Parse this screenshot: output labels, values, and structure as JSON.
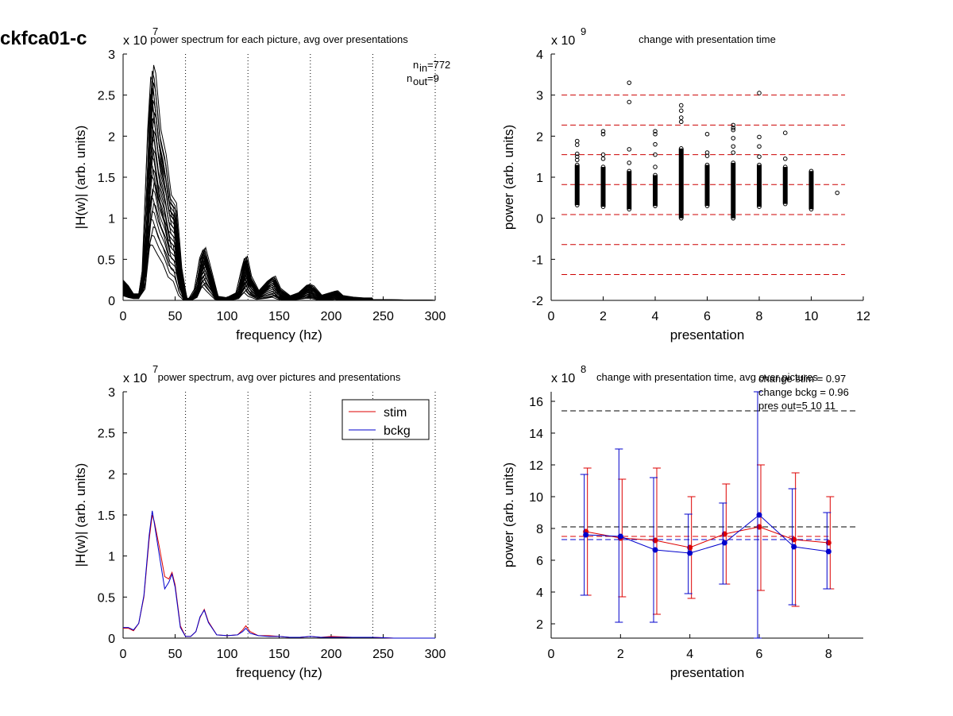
{
  "figure_title": "ckfca01-c",
  "chart_data": [
    {
      "type": "line",
      "title": "power spectrum for each picture, avg over presentations",
      "exponent_label": "x 10",
      "exponent": "7",
      "xlabel": "frequency (hz)",
      "ylabel": "|H(w)| (arb. units)",
      "xlim": [
        0,
        300
      ],
      "ylim": [
        0,
        3
      ],
      "xticks": [
        0,
        50,
        100,
        150,
        200,
        250,
        300
      ],
      "yticks": [
        0,
        0.5,
        1,
        1.5,
        2,
        2.5,
        3
      ],
      "vlines": [
        60,
        120,
        180,
        240,
        300
      ],
      "annotation": {
        "n_in_label": "n",
        "n_in_sub": "in",
        "n_in_value": "=772",
        "n_out_label": "n",
        "n_out_sub": "out",
        "n_out_value": "=9"
      },
      "envelope": {
        "x": [
          0,
          5,
          10,
          15,
          20,
          25,
          28,
          30,
          35,
          40,
          45,
          50,
          55,
          60,
          65,
          70,
          75,
          78,
          82,
          90,
          100,
          110,
          115,
          118,
          122,
          130,
          140,
          145,
          150,
          160,
          170,
          178,
          182,
          190,
          200,
          205,
          210,
          220,
          230,
          238,
          240,
          300
        ],
        "upper": [
          0.25,
          0.18,
          0.08,
          0.08,
          0.4,
          2.2,
          2.9,
          2.8,
          2.1,
          1.8,
          1.3,
          1.2,
          0.4,
          0.02,
          0.03,
          0.15,
          0.55,
          0.65,
          0.45,
          0.05,
          0.03,
          0.1,
          0.4,
          0.55,
          0.3,
          0.1,
          0.25,
          0.3,
          0.15,
          0.05,
          0.1,
          0.2,
          0.18,
          0.06,
          0.1,
          0.12,
          0.06,
          0.04,
          0.03,
          0.03,
          0.01,
          0.0
        ],
        "lower": [
          0.05,
          0.03,
          0.02,
          0.02,
          0.1,
          0.5,
          0.6,
          0.6,
          0.5,
          0.4,
          0.25,
          0.2,
          0.05,
          0.0,
          0.0,
          0.02,
          0.12,
          0.15,
          0.1,
          0.01,
          0.0,
          0.01,
          0.05,
          0.08,
          0.04,
          0.01,
          0.02,
          0.03,
          0.01,
          0.0,
          0.01,
          0.02,
          0.02,
          0.0,
          0.0,
          0.01,
          0.0,
          0.0,
          0.0,
          0.0,
          0.0,
          0.0
        ]
      }
    },
    {
      "type": "scatter",
      "title": "change with presentation time",
      "exponent_label": "x 10",
      "exponent": "9",
      "xlabel": "presentation",
      "ylabel": "power (arb. units)",
      "xlim": [
        0,
        12
      ],
      "ylim": [
        -2,
        4
      ],
      "xticks": [
        0,
        2,
        4,
        6,
        8,
        10,
        12
      ],
      "yticks": [
        -2,
        -1,
        0,
        1,
        2,
        3,
        4
      ],
      "hlines": [
        3.0,
        2.27,
        1.55,
        0.82,
        0.09,
        -0.64,
        -1.37
      ],
      "columns": [
        {
          "x": 1,
          "min": 0.32,
          "max": 1.3,
          "outliers": [
            1.42,
            1.5,
            1.57,
            1.79,
            1.88
          ]
        },
        {
          "x": 2,
          "min": 0.28,
          "max": 1.25,
          "outliers": [
            1.45,
            1.55,
            2.05,
            2.12
          ]
        },
        {
          "x": 3,
          "min": 0.22,
          "max": 1.15,
          "outliers": [
            1.35,
            1.68,
            2.83,
            3.3
          ]
        },
        {
          "x": 4,
          "min": 0.3,
          "max": 1.05,
          "outliers": [
            1.25,
            1.55,
            1.8,
            2.05,
            2.12
          ]
        },
        {
          "x": 5,
          "min": 0.0,
          "max": 1.7,
          "outliers": [
            2.35,
            2.45,
            2.62,
            2.75
          ]
        },
        {
          "x": 6,
          "min": 0.3,
          "max": 1.3,
          "outliers": [
            1.52,
            1.6,
            2.05
          ]
        },
        {
          "x": 7,
          "min": 0.0,
          "max": 1.35,
          "outliers": [
            1.6,
            1.75,
            1.95,
            2.15,
            2.2,
            2.27
          ]
        },
        {
          "x": 8,
          "min": 0.28,
          "max": 1.3,
          "outliers": [
            1.5,
            1.75,
            1.98,
            3.05
          ]
        },
        {
          "x": 9,
          "min": 0.35,
          "max": 1.25,
          "outliers": [
            1.45,
            2.08
          ]
        },
        {
          "x": 10,
          "min": 0.22,
          "max": 1.15,
          "outliers": []
        },
        {
          "x": 11,
          "min": 0.62,
          "max": 0.62,
          "outliers": []
        }
      ]
    },
    {
      "type": "line",
      "title": "power spectrum, avg over pictures and presentations",
      "exponent_label": "x 10",
      "exponent": "7",
      "xlabel": "frequency (hz)",
      "ylabel": "|H(w)| (arb. units)",
      "xlim": [
        0,
        300
      ],
      "ylim": [
        0,
        3
      ],
      "xticks": [
        0,
        50,
        100,
        150,
        200,
        250,
        300
      ],
      "yticks": [
        0,
        0.5,
        1,
        1.5,
        2,
        2.5,
        3
      ],
      "vlines": [
        60,
        120,
        180,
        240,
        300
      ],
      "legend": {
        "position": "top-right"
      },
      "series": [
        {
          "name": "stim",
          "color": "#dd0000",
          "x": [
            0,
            5,
            10,
            15,
            20,
            25,
            28,
            30,
            35,
            40,
            44,
            47,
            50,
            55,
            60,
            65,
            70,
            74,
            78,
            82,
            90,
            100,
            110,
            115,
            118,
            122,
            130,
            140,
            150,
            160,
            170,
            180,
            190,
            200,
            220,
            240,
            260,
            300
          ],
          "y": [
            0.12,
            0.12,
            0.09,
            0.18,
            0.5,
            1.2,
            1.5,
            1.42,
            1.1,
            0.75,
            0.72,
            0.8,
            0.65,
            0.15,
            0.02,
            0.02,
            0.08,
            0.25,
            0.35,
            0.2,
            0.04,
            0.03,
            0.04,
            0.1,
            0.15,
            0.08,
            0.03,
            0.03,
            0.02,
            0.01,
            0.01,
            0.02,
            0.01,
            0.02,
            0.01,
            0.01,
            0.0,
            0.0
          ]
        },
        {
          "name": "bckg",
          "color": "#0000cc",
          "x": [
            0,
            5,
            10,
            15,
            20,
            25,
            28,
            30,
            35,
            40,
            44,
            47,
            50,
            55,
            60,
            65,
            70,
            74,
            78,
            82,
            90,
            100,
            110,
            115,
            118,
            122,
            130,
            140,
            150,
            160,
            170,
            180,
            190,
            200,
            220,
            240,
            260,
            300
          ],
          "y": [
            0.13,
            0.13,
            0.1,
            0.18,
            0.52,
            1.25,
            1.55,
            1.4,
            1.0,
            0.6,
            0.68,
            0.78,
            0.62,
            0.13,
            0.02,
            0.02,
            0.08,
            0.26,
            0.34,
            0.19,
            0.04,
            0.03,
            0.04,
            0.08,
            0.12,
            0.06,
            0.03,
            0.02,
            0.02,
            0.01,
            0.01,
            0.02,
            0.01,
            0.01,
            0.01,
            0.01,
            0.0,
            0.0
          ]
        }
      ]
    },
    {
      "type": "line",
      "title": "change with presentation time, avg over pictures",
      "exponent_label": "x 10",
      "exponent": "8",
      "xlabel": "presentation",
      "ylabel": "power (arb. units)",
      "xlim": [
        0,
        9
      ],
      "ylim": [
        1.1,
        16.6
      ],
      "xticks": [
        0,
        2,
        4,
        6,
        8
      ],
      "yticks": [
        2,
        4,
        6,
        8,
        10,
        12,
        14,
        16
      ],
      "annotations": [
        "change stim = 0.97",
        "change bckg = 0.96",
        "pres out=5 10 11"
      ],
      "hlines": [
        {
          "y": 15.4,
          "color": "#000000"
        },
        {
          "y": 8.1,
          "color": "#000000"
        },
        {
          "y": 7.5,
          "color": "#dd0000",
          "x_end": 8
        },
        {
          "y": 7.3,
          "color": "#0000cc",
          "x_end": 8
        }
      ],
      "series": [
        {
          "name": "stim",
          "color": "#dd0000",
          "x": [
            1,
            2,
            3,
            4,
            5,
            6,
            7,
            8
          ],
          "y": [
            7.8,
            7.4,
            7.25,
            6.8,
            7.65,
            8.1,
            7.3,
            7.1
          ],
          "err_low": [
            3.8,
            3.7,
            2.6,
            3.6,
            4.5,
            4.1,
            3.1,
            4.2
          ],
          "err_high": [
            11.8,
            11.1,
            11.8,
            10.0,
            10.8,
            12.0,
            11.5,
            10.0
          ]
        },
        {
          "name": "bckg",
          "color": "#0000cc",
          "x": [
            1,
            2,
            3,
            4,
            5,
            6,
            7,
            8
          ],
          "y": [
            7.6,
            7.5,
            6.65,
            6.45,
            7.1,
            8.85,
            6.85,
            6.55
          ],
          "err_low": [
            3.8,
            2.1,
            2.1,
            3.9,
            4.5,
            1.1,
            3.2,
            4.2
          ],
          "err_high": [
            11.4,
            13.0,
            11.2,
            8.9,
            9.6,
            16.6,
            10.5,
            9.0
          ]
        }
      ]
    }
  ]
}
